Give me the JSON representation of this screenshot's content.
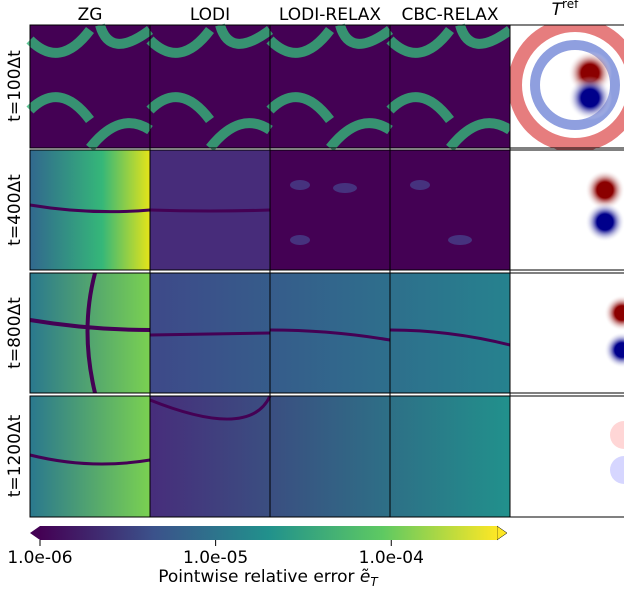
{
  "chart_data": {
    "type": "heatmap",
    "columns": [
      "ZG",
      "LODI",
      "LODI-RELAX",
      "CBC-RELAX"
    ],
    "ref_column": {
      "symbol": "T",
      "superscript": "ref"
    },
    "rows": [
      "t=100Δt",
      "t=400Δt",
      "t=800Δt",
      "t=1200Δt"
    ],
    "colorbar": {
      "label": "Pointwise relative error",
      "symbol": "ẽ",
      "subscript": "T",
      "log_scale": true,
      "clim": [
        1e-06,
        0.0004
      ],
      "ticks": [
        {
          "value": 1e-06,
          "label": "1.0e-06"
        },
        {
          "value": 1e-05,
          "label": "1.0e-05"
        },
        {
          "value": 0.0001,
          "label": "1.0e-04"
        }
      ]
    }
  }
}
